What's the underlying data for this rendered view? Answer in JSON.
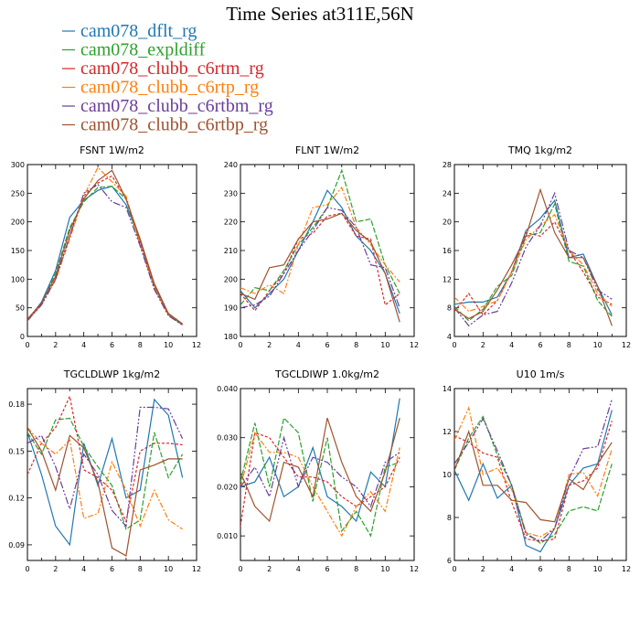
{
  "figure_title": "Time Series at311E,56N",
  "legend": [
    {
      "label": "cam078_dflt_rg",
      "color": "#1f77b4"
    },
    {
      "label": "cam078_expldiff",
      "color": "#2ca02c"
    },
    {
      "label": "cam078_clubb_c6rtm_rg",
      "color": "#d62728"
    },
    {
      "label": "cam078_clubb_c6rtp_rg",
      "color": "#ff7f0e"
    },
    {
      "label": "cam078_clubb_c6rtbm_rg",
      "color": "#6a3d9a"
    },
    {
      "label": "cam078_clubb_c6rtbp_rg",
      "color": "#a0522d"
    }
  ],
  "chart_data": [
    {
      "type": "line",
      "title": "FSNT   1W/m2",
      "x": [
        0,
        1,
        2,
        3,
        4,
        5,
        6,
        7,
        8,
        9,
        10,
        11
      ],
      "xlim": [
        0,
        12
      ],
      "xticks": [
        0,
        2,
        4,
        6,
        8,
        10,
        12
      ],
      "ylim": [
        0,
        300
      ],
      "yticks": [
        0,
        50,
        100,
        150,
        200,
        250,
        300
      ],
      "ytick_labels": [
        "0",
        "50",
        "100",
        "150",
        "200",
        "250",
        "300"
      ],
      "series": [
        {
          "name": "cam078_dflt_rg",
          "values": [
            28,
            60,
            115,
            208,
            238,
            255,
            262,
            230,
            168,
            90,
            38,
            20
          ]
        },
        {
          "name": "cam078_expldiff",
          "values": [
            30,
            58,
            110,
            190,
            235,
            260,
            262,
            240,
            160,
            85,
            38,
            21
          ]
        },
        {
          "name": "cam078_clubb_c6rtm_rg",
          "values": [
            30,
            58,
            100,
            175,
            245,
            268,
            280,
            240,
            165,
            88,
            40,
            22
          ]
        },
        {
          "name": "cam078_clubb_c6rtp_rg",
          "values": [
            27,
            55,
            98,
            170,
            245,
            295,
            270,
            245,
            160,
            85,
            37,
            20
          ]
        },
        {
          "name": "cam078_clubb_c6rtbm_rg",
          "values": [
            28,
            55,
            100,
            175,
            250,
            265,
            235,
            225,
            158,
            82,
            36,
            20
          ]
        },
        {
          "name": "cam078_clubb_c6rtbp_rg",
          "values": [
            30,
            58,
            105,
            185,
            240,
            272,
            290,
            240,
            170,
            92,
            40,
            22
          ]
        }
      ]
    },
    {
      "type": "line",
      "title": "FLNT   1W/m2",
      "x": [
        0,
        1,
        2,
        3,
        4,
        5,
        6,
        7,
        8,
        9,
        10,
        11
      ],
      "xlim": [
        0,
        12
      ],
      "xticks": [
        0,
        2,
        4,
        6,
        8,
        10,
        12
      ],
      "ylim": [
        180,
        240
      ],
      "yticks": [
        180,
        190,
        200,
        210,
        220,
        230,
        240
      ],
      "ytick_labels": [
        "180",
        "190",
        "200",
        "210",
        "220",
        "230",
        "240"
      ],
      "series": [
        {
          "name": "cam078_dflt_rg",
          "values": [
            196,
            190,
            195,
            200,
            210,
            220,
            231,
            225,
            215,
            210,
            202,
            188
          ]
        },
        {
          "name": "cam078_expldiff",
          "values": [
            191,
            197,
            196,
            203,
            212,
            218,
            225,
            238,
            220,
            221,
            205,
            195
          ]
        },
        {
          "name": "cam078_clubb_c6rtm_rg",
          "values": [
            195,
            189,
            196,
            202,
            214,
            216,
            222,
            223,
            215,
            214,
            191,
            195
          ]
        },
        {
          "name": "cam078_clubb_c6rtp_rg",
          "values": [
            197,
            195,
            198,
            195,
            212,
            225,
            226,
            232,
            218,
            212,
            205,
            199
          ]
        },
        {
          "name": "cam078_clubb_c6rtbm_rg",
          "values": [
            190,
            191,
            194,
            202,
            210,
            217,
            225,
            224,
            218,
            205,
            204,
            190
          ]
        },
        {
          "name": "cam078_clubb_c6rtbp_rg",
          "values": [
            195,
            193,
            204,
            205,
            214,
            220,
            221,
            223,
            217,
            213,
            202,
            185
          ]
        }
      ]
    },
    {
      "type": "line",
      "title": "TMQ   1kg/m2",
      "x": [
        0,
        1,
        2,
        3,
        4,
        5,
        6,
        7,
        8,
        9,
        10,
        11
      ],
      "xlim": [
        0,
        12
      ],
      "xticks": [
        0,
        2,
        4,
        6,
        8,
        10,
        12
      ],
      "ylim": [
        4,
        28
      ],
      "yticks": [
        4,
        8,
        12,
        16,
        20,
        24,
        28
      ],
      "ytick_labels": [
        "4",
        "8",
        "12",
        "16",
        "20",
        "24",
        "28"
      ],
      "series": [
        {
          "name": "cam078_dflt_rg",
          "values": [
            8.5,
            8.8,
            8.8,
            9.5,
            13,
            18.8,
            20.5,
            23,
            15,
            15.5,
            11,
            7
          ]
        },
        {
          "name": "cam078_expldiff",
          "values": [
            8.2,
            6.2,
            7.8,
            11,
            12.5,
            18,
            18.5,
            22.5,
            14.5,
            13.8,
            9,
            6.8
          ]
        },
        {
          "name": "cam078_clubb_c6rtm_rg",
          "values": [
            7.5,
            10,
            7,
            9,
            13,
            18.5,
            18,
            20,
            16,
            13,
            9.5,
            8.5
          ]
        },
        {
          "name": "cam078_clubb_c6rtp_rg",
          "values": [
            9.5,
            7.5,
            8.2,
            9,
            13,
            17.5,
            19.5,
            21,
            16,
            14,
            10,
            8.2
          ]
        },
        {
          "name": "cam078_clubb_c6rtbm_rg",
          "values": [
            8,
            5.5,
            7,
            7.5,
            11.5,
            16.5,
            19.5,
            24,
            16,
            15,
            10.5,
            9.2
          ]
        },
        {
          "name": "cam078_clubb_c6rtbp_rg",
          "values": [
            7.8,
            6.5,
            7.5,
            10.5,
            14,
            18,
            24.5,
            18.5,
            15,
            15,
            11,
            5.5
          ]
        }
      ]
    },
    {
      "type": "line",
      "title": "TGCLDLWP   1kg/m2",
      "x": [
        0,
        1,
        2,
        3,
        4,
        5,
        6,
        7,
        8,
        9,
        10,
        11
      ],
      "xlim": [
        0,
        12
      ],
      "xticks": [
        0,
        2,
        4,
        6,
        8,
        10,
        12
      ],
      "ylim": [
        0.08,
        0.19
      ],
      "yticks": [
        0.09,
        0.12,
        0.15,
        0.18
      ],
      "ytick_labels": [
        "0.09",
        "0.12",
        "0.15",
        "0.18"
      ],
      "series": [
        {
          "name": "cam078_dflt_rg",
          "values": [
            0.162,
            0.135,
            0.102,
            0.09,
            0.155,
            0.128,
            0.158,
            0.12,
            0.125,
            0.183,
            0.173,
            0.133
          ]
        },
        {
          "name": "cam078_expldiff",
          "values": [
            0.162,
            0.148,
            0.17,
            0.171,
            0.153,
            0.14,
            0.128,
            0.1,
            0.106,
            0.162,
            0.133,
            0.148
          ]
        },
        {
          "name": "cam078_clubb_c6rtm_rg",
          "values": [
            0.135,
            0.155,
            0.165,
            0.185,
            0.138,
            0.133,
            0.125,
            0.105,
            0.15,
            0.155,
            0.155,
            0.154
          ]
        },
        {
          "name": "cam078_clubb_c6rtp_rg",
          "values": [
            0.165,
            0.155,
            0.148,
            0.157,
            0.107,
            0.11,
            0.143,
            0.125,
            0.102,
            0.125,
            0.106,
            0.1
          ]
        },
        {
          "name": "cam078_clubb_c6rtbm_rg",
          "values": [
            0.155,
            0.16,
            0.14,
            0.113,
            0.148,
            0.135,
            0.112,
            0.102,
            0.178,
            0.178,
            0.177,
            0.158
          ]
        },
        {
          "name": "cam078_clubb_c6rtbp_rg",
          "values": [
            0.165,
            0.15,
            0.125,
            0.16,
            0.152,
            0.13,
            0.088,
            0.083,
            0.138,
            0.141,
            0.145,
            0.145
          ]
        }
      ]
    },
    {
      "type": "line",
      "title": "TGCLDIWP   1.0kg/m2",
      "x": [
        0,
        1,
        2,
        3,
        4,
        5,
        6,
        7,
        8,
        9,
        10,
        11
      ],
      "xlim": [
        0,
        12
      ],
      "xticks": [
        0,
        2,
        4,
        6,
        8,
        10,
        12
      ],
      "ylim": [
        0.005,
        0.04
      ],
      "yticks": [
        0.01,
        0.02,
        0.03,
        0.04
      ],
      "ytick_labels": [
        "0.010",
        "0.020",
        "0.030",
        "0.040"
      ],
      "series": [
        {
          "name": "cam078_dflt_rg",
          "values": [
            0.02,
            0.021,
            0.026,
            0.018,
            0.02,
            0.028,
            0.018,
            0.016,
            0.013,
            0.023,
            0.02,
            0.038
          ]
        },
        {
          "name": "cam078_expldiff",
          "values": [
            0.021,
            0.033,
            0.02,
            0.034,
            0.031,
            0.017,
            0.03,
            0.011,
            0.015,
            0.01,
            0.024,
            0.025
          ]
        },
        {
          "name": "cam078_clubb_c6rtm_rg",
          "values": [
            0.012,
            0.031,
            0.03,
            0.026,
            0.022,
            0.022,
            0.021,
            0.018,
            0.016,
            0.018,
            0.02,
            0.026
          ]
        },
        {
          "name": "cam078_clubb_c6rtp_rg",
          "values": [
            0.02,
            0.031,
            0.027,
            0.027,
            0.026,
            0.02,
            0.015,
            0.01,
            0.016,
            0.019,
            0.015,
            0.028
          ]
        },
        {
          "name": "cam078_clubb_c6rtbm_rg",
          "values": [
            0.02,
            0.024,
            0.018,
            0.03,
            0.02,
            0.026,
            0.025,
            0.022,
            0.02,
            0.016,
            0.025,
            0.027
          ]
        },
        {
          "name": "cam078_clubb_c6rtbp_rg",
          "values": [
            0.023,
            0.016,
            0.013,
            0.025,
            0.024,
            0.018,
            0.034,
            0.025,
            0.018,
            0.015,
            0.023,
            0.034
          ]
        }
      ]
    },
    {
      "type": "line",
      "title": "U10   1m/s",
      "x": [
        0,
        1,
        2,
        3,
        4,
        5,
        6,
        7,
        8,
        9,
        10,
        11
      ],
      "xlim": [
        0,
        12
      ],
      "xticks": [
        0,
        2,
        4,
        6,
        8,
        10,
        12
      ],
      "ylim": [
        6,
        14
      ],
      "yticks": [
        6,
        8,
        10,
        12,
        14
      ],
      "ytick_labels": [
        "6",
        "8",
        "10",
        "12",
        "14"
      ],
      "series": [
        {
          "name": "cam078_dflt_rg",
          "values": [
            10.2,
            8.8,
            10.5,
            8.9,
            9.5,
            6.7,
            6.4,
            7.5,
            9.5,
            10.3,
            10.5,
            13
          ]
        },
        {
          "name": "cam078_expldiff",
          "values": [
            10.2,
            11.7,
            12.7,
            10.9,
            9.5,
            7.3,
            6.8,
            7.2,
            8.3,
            8.5,
            8.3,
            10.5
          ]
        },
        {
          "name": "cam078_clubb_c6rtm_rg",
          "values": [
            11.8,
            11.5,
            11.0,
            10.8,
            8.7,
            7.0,
            6.9,
            7.0,
            9.5,
            9.7,
            10.3,
            12.5
          ]
        },
        {
          "name": "cam078_clubb_c6rtp_rg",
          "values": [
            11.6,
            13.1,
            10.0,
            10.3,
            9.3,
            7.3,
            7.1,
            7.5,
            10.0,
            10.1,
            9.0,
            11.2
          ]
        },
        {
          "name": "cam078_clubb_c6rtbm_rg",
          "values": [
            10.5,
            11.5,
            12.6,
            11.1,
            9.5,
            7.2,
            6.9,
            7.5,
            9.8,
            11.2,
            11.3,
            13.5
          ]
        },
        {
          "name": "cam078_clubb_c6rtbp_rg",
          "values": [
            10.2,
            12.0,
            9.5,
            9.5,
            8.8,
            8.7,
            7.9,
            7.8,
            9.8,
            9.3,
            10.5,
            11.5
          ]
        }
      ]
    }
  ]
}
